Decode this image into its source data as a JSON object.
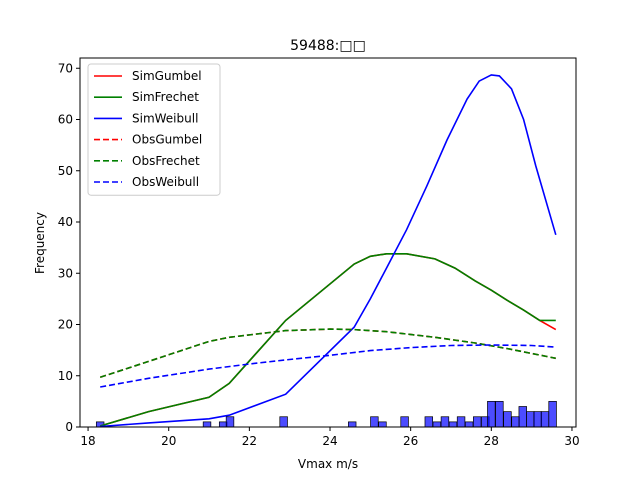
{
  "chart_data": {
    "type": "line",
    "title": "59488:□□",
    "xlabel": "Vmax m/s",
    "ylabel": "Frequency",
    "xlim": [
      17.8,
      30.1
    ],
    "ylim": [
      0,
      72
    ],
    "xticks": [
      18,
      20,
      22,
      24,
      26,
      28,
      30
    ],
    "yticks": [
      0,
      10,
      20,
      30,
      40,
      50,
      60,
      70
    ],
    "grid": false,
    "legend_position": "top-left",
    "series": [
      {
        "name": "SimGumbel",
        "color": "#ff0000",
        "dash": false,
        "x": [
          18.3,
          19.5,
          21.0,
          21.5,
          22.9,
          24.6,
          25.0,
          25.4,
          25.9,
          26.6,
          27.1,
          27.6,
          28.0,
          28.4,
          28.8,
          29.2,
          29.6
        ],
        "y": [
          0.2,
          3.0,
          5.8,
          8.5,
          20.8,
          31.8,
          33.3,
          33.8,
          33.8,
          32.8,
          31.0,
          28.5,
          26.7,
          24.7,
          22.8,
          20.8,
          19.0
        ]
      },
      {
        "name": "SimFrechet",
        "color": "#008000",
        "dash": false,
        "x": [
          18.3,
          19.5,
          21.0,
          21.5,
          22.9,
          24.6,
          25.0,
          25.4,
          25.9,
          26.6,
          27.1,
          27.6,
          28.0,
          28.4,
          28.8,
          29.2,
          29.6
        ],
        "y": [
          0.2,
          3.0,
          5.8,
          8.5,
          20.8,
          31.8,
          33.3,
          33.8,
          33.8,
          32.8,
          31.0,
          28.5,
          26.7,
          24.7,
          22.8,
          20.8,
          20.8
        ]
      },
      {
        "name": "SimWeibull",
        "color": "#0000ff",
        "dash": false,
        "x": [
          18.3,
          19.5,
          21.0,
          21.5,
          22.9,
          24.6,
          25.0,
          25.4,
          25.9,
          26.4,
          26.9,
          27.4,
          27.7,
          28.0,
          28.2,
          28.5,
          28.8,
          29.1,
          29.6
        ],
        "y": [
          0.1,
          0.8,
          1.6,
          2.3,
          6.4,
          19.5,
          25.0,
          31.0,
          38.5,
          47.0,
          56.0,
          64.0,
          67.5,
          68.7,
          68.5,
          66.0,
          60.0,
          51.0,
          37.5
        ]
      },
      {
        "name": "ObsGumbel",
        "color": "#ff0000",
        "dash": true,
        "x": [
          18.3,
          19.5,
          21.0,
          21.5,
          22.9,
          24.0,
          24.6,
          25.4,
          26.6,
          27.6,
          28.4,
          29.6
        ],
        "y": [
          9.7,
          12.8,
          16.7,
          17.5,
          18.8,
          19.1,
          19.0,
          18.6,
          17.5,
          16.4,
          15.3,
          13.4
        ]
      },
      {
        "name": "ObsFrechet",
        "color": "#008000",
        "dash": true,
        "x": [
          18.3,
          19.5,
          21.0,
          21.5,
          22.9,
          24.0,
          24.6,
          25.4,
          26.6,
          27.6,
          28.4,
          29.6
        ],
        "y": [
          9.7,
          12.8,
          16.7,
          17.5,
          18.8,
          19.1,
          19.0,
          18.6,
          17.5,
          16.4,
          15.3,
          13.4
        ]
      },
      {
        "name": "ObsWeibull",
        "color": "#0000ff",
        "dash": true,
        "x": [
          18.3,
          19.5,
          21.0,
          22.0,
          22.9,
          24.0,
          25.0,
          26.0,
          27.0,
          28.0,
          29.0,
          29.6
        ],
        "y": [
          7.8,
          9.5,
          11.3,
          12.3,
          13.1,
          14.0,
          14.9,
          15.5,
          15.9,
          16.0,
          15.9,
          15.6
        ]
      }
    ],
    "histogram": {
      "color": "#0000ff",
      "bin_width": 0.19,
      "bins": [
        {
          "x": 18.3,
          "count": 1
        },
        {
          "x": 20.95,
          "count": 1
        },
        {
          "x": 21.35,
          "count": 1
        },
        {
          "x": 21.52,
          "count": 2
        },
        {
          "x": 22.85,
          "count": 2
        },
        {
          "x": 24.55,
          "count": 1
        },
        {
          "x": 25.1,
          "count": 2
        },
        {
          "x": 25.3,
          "count": 1
        },
        {
          "x": 25.85,
          "count": 2
        },
        {
          "x": 26.45,
          "count": 2
        },
        {
          "x": 26.65,
          "count": 1
        },
        {
          "x": 26.85,
          "count": 2
        },
        {
          "x": 27.05,
          "count": 1
        },
        {
          "x": 27.25,
          "count": 2
        },
        {
          "x": 27.45,
          "count": 1
        },
        {
          "x": 27.65,
          "count": 2
        },
        {
          "x": 27.85,
          "count": 2
        },
        {
          "x": 28.0,
          "count": 5
        },
        {
          "x": 28.2,
          "count": 5
        },
        {
          "x": 28.4,
          "count": 3
        },
        {
          "x": 28.6,
          "count": 2
        },
        {
          "x": 28.78,
          "count": 4
        },
        {
          "x": 28.97,
          "count": 3
        },
        {
          "x": 29.15,
          "count": 3
        },
        {
          "x": 29.33,
          "count": 3
        },
        {
          "x": 29.52,
          "count": 5
        }
      ]
    }
  }
}
